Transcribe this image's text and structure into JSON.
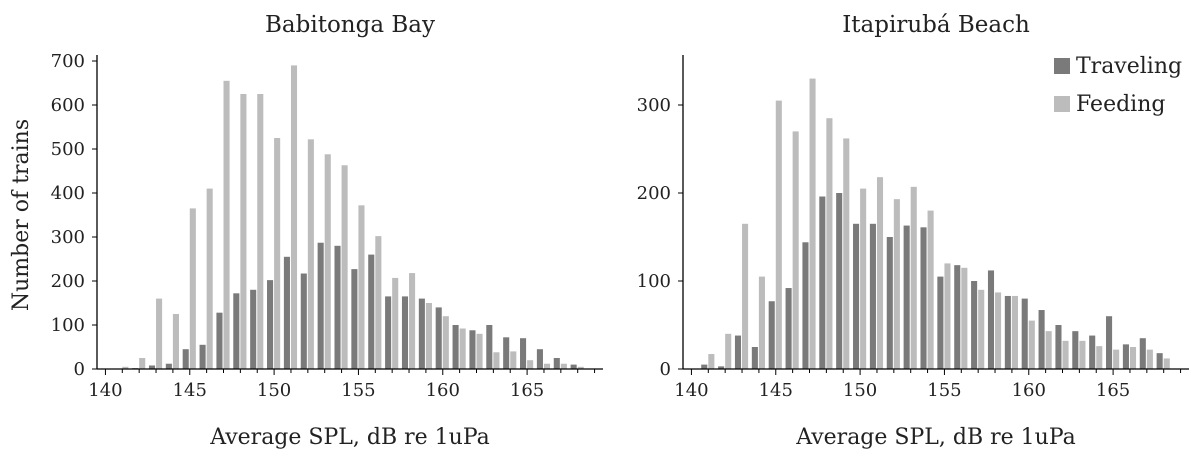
{
  "colors": {
    "traveling": "#7a7a7a",
    "feeding": "#bcbcbc",
    "axis": "#000000"
  },
  "chart_data": [
    {
      "type": "bar",
      "title": "Babitonga Bay",
      "xlabel": "Average SPL, dB re 1uPa",
      "ylabel": "Number of trains",
      "xlim": [
        139.5,
        169.5
      ],
      "ylim": [
        0,
        700
      ],
      "xticks": [
        140,
        145,
        150,
        155,
        160,
        165
      ],
      "yticks": [
        0,
        100,
        200,
        300,
        400,
        500,
        600,
        700
      ],
      "x": [
        140,
        141,
        142,
        143,
        144,
        145,
        146,
        147,
        148,
        149,
        150,
        151,
        152,
        153,
        154,
        155,
        156,
        157,
        158,
        159,
        160,
        161,
        162,
        163,
        164,
        165,
        166,
        167,
        168
      ],
      "series": [
        {
          "name": "Traveling",
          "color": "traveling",
          "values": [
            0,
            0,
            2,
            8,
            12,
            45,
            55,
            128,
            172,
            180,
            202,
            255,
            217,
            287,
            280,
            227,
            260,
            165,
            165,
            160,
            140,
            100,
            88,
            100,
            72,
            70,
            45,
            25,
            10
          ]
        },
        {
          "name": "Feeding",
          "color": "feeding",
          "values": [
            0,
            5,
            25,
            160,
            125,
            365,
            410,
            655,
            625,
            625,
            525,
            690,
            522,
            488,
            463,
            372,
            302,
            207,
            218,
            150,
            120,
            92,
            80,
            38,
            40,
            20,
            12,
            12,
            5
          ]
        }
      ],
      "legend": false
    },
    {
      "type": "bar",
      "title": "Itapirubá Beach",
      "xlabel": "Average SPL, dB re 1uPa",
      "ylabel": "",
      "xlim": [
        139.5,
        169.5
      ],
      "ylim": [
        0,
        350
      ],
      "xticks": [
        140,
        145,
        150,
        155,
        160,
        165
      ],
      "yticks": [
        0,
        100,
        200,
        300
      ],
      "x": [
        140,
        141,
        142,
        143,
        144,
        145,
        146,
        147,
        148,
        149,
        150,
        151,
        152,
        153,
        154,
        155,
        156,
        157,
        158,
        159,
        160,
        161,
        162,
        163,
        164,
        165,
        166,
        167,
        168
      ],
      "series": [
        {
          "name": "Traveling",
          "color": "traveling",
          "values": [
            0,
            5,
            3,
            38,
            25,
            77,
            92,
            144,
            196,
            200,
            165,
            165,
            150,
            163,
            161,
            105,
            118,
            100,
            112,
            83,
            80,
            67,
            50,
            43,
            38,
            60,
            28,
            35,
            18
          ]
        },
        {
          "name": "Feeding",
          "color": "feeding",
          "values": [
            0,
            17,
            40,
            165,
            105,
            305,
            270,
            330,
            285,
            262,
            205,
            218,
            193,
            207,
            180,
            120,
            115,
            90,
            87,
            83,
            55,
            43,
            32,
            32,
            26,
            22,
            25,
            22,
            12
          ]
        }
      ],
      "legend": true,
      "legend_position": "top-right"
    }
  ]
}
